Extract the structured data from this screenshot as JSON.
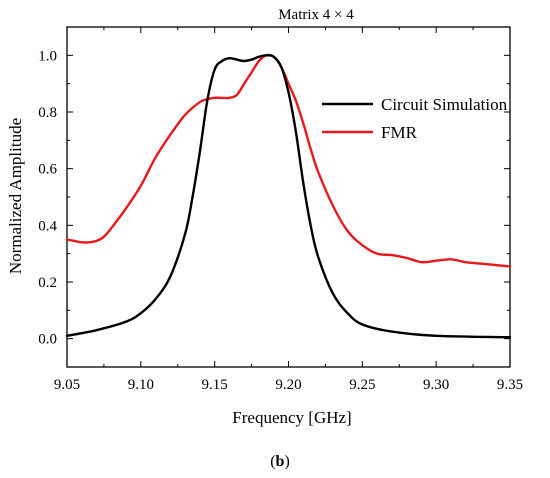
{
  "chart_data": {
    "type": "line",
    "title": "Matrix 4 × 4",
    "xlabel": "Frequency [GHz]",
    "ylabel": "Normalized Amplitude",
    "caption_prefix": "(",
    "caption_letter": "b",
    "caption_suffix": ")",
    "xlim": [
      9.05,
      9.35
    ],
    "ylim": [
      -0.1,
      1.1
    ],
    "xticks": [
      "9.05",
      "9.10",
      "9.15",
      "9.20",
      "9.25",
      "9.30",
      "9.35"
    ],
    "yticks": [
      "0.0",
      "0.2",
      "0.4",
      "0.6",
      "0.8",
      "1.0"
    ],
    "grid": false,
    "legend_position": "top-right",
    "series": [
      {
        "name": "Circuit Simulation",
        "color": "#000000",
        "x": [
          9.05,
          9.07,
          9.09,
          9.1,
          9.11,
          9.12,
          9.13,
          9.135,
          9.14,
          9.145,
          9.15,
          9.155,
          9.16,
          9.165,
          9.17,
          9.175,
          9.18,
          9.185,
          9.19,
          9.195,
          9.2,
          9.205,
          9.21,
          9.215,
          9.22,
          9.23,
          9.24,
          9.25,
          9.27,
          9.3,
          9.35
        ],
        "y": [
          0.01,
          0.03,
          0.06,
          0.09,
          0.14,
          0.22,
          0.37,
          0.5,
          0.66,
          0.84,
          0.95,
          0.98,
          0.99,
          0.985,
          0.98,
          0.985,
          0.995,
          1.0,
          0.995,
          0.96,
          0.87,
          0.73,
          0.55,
          0.4,
          0.29,
          0.16,
          0.09,
          0.05,
          0.025,
          0.01,
          0.005
        ]
      },
      {
        "name": "FMR",
        "color": "#e8191d",
        "x": [
          9.05,
          9.055,
          9.06,
          9.065,
          9.07,
          9.075,
          9.08,
          9.09,
          9.1,
          9.11,
          9.12,
          9.13,
          9.14,
          9.145,
          9.15,
          9.155,
          9.16,
          9.165,
          9.17,
          9.175,
          9.18,
          9.185,
          9.19,
          9.195,
          9.2,
          9.205,
          9.21,
          9.215,
          9.22,
          9.23,
          9.24,
          9.25,
          9.26,
          9.27,
          9.28,
          9.29,
          9.3,
          9.31,
          9.32,
          9.33,
          9.34,
          9.35
        ],
        "y": [
          0.35,
          0.345,
          0.34,
          0.34,
          0.345,
          0.36,
          0.39,
          0.46,
          0.54,
          0.64,
          0.72,
          0.79,
          0.835,
          0.845,
          0.85,
          0.85,
          0.85,
          0.86,
          0.9,
          0.94,
          0.98,
          1.0,
          0.995,
          0.96,
          0.9,
          0.84,
          0.76,
          0.67,
          0.59,
          0.47,
          0.38,
          0.33,
          0.3,
          0.295,
          0.285,
          0.27,
          0.275,
          0.28,
          0.27,
          0.265,
          0.26,
          0.255
        ]
      }
    ]
  }
}
